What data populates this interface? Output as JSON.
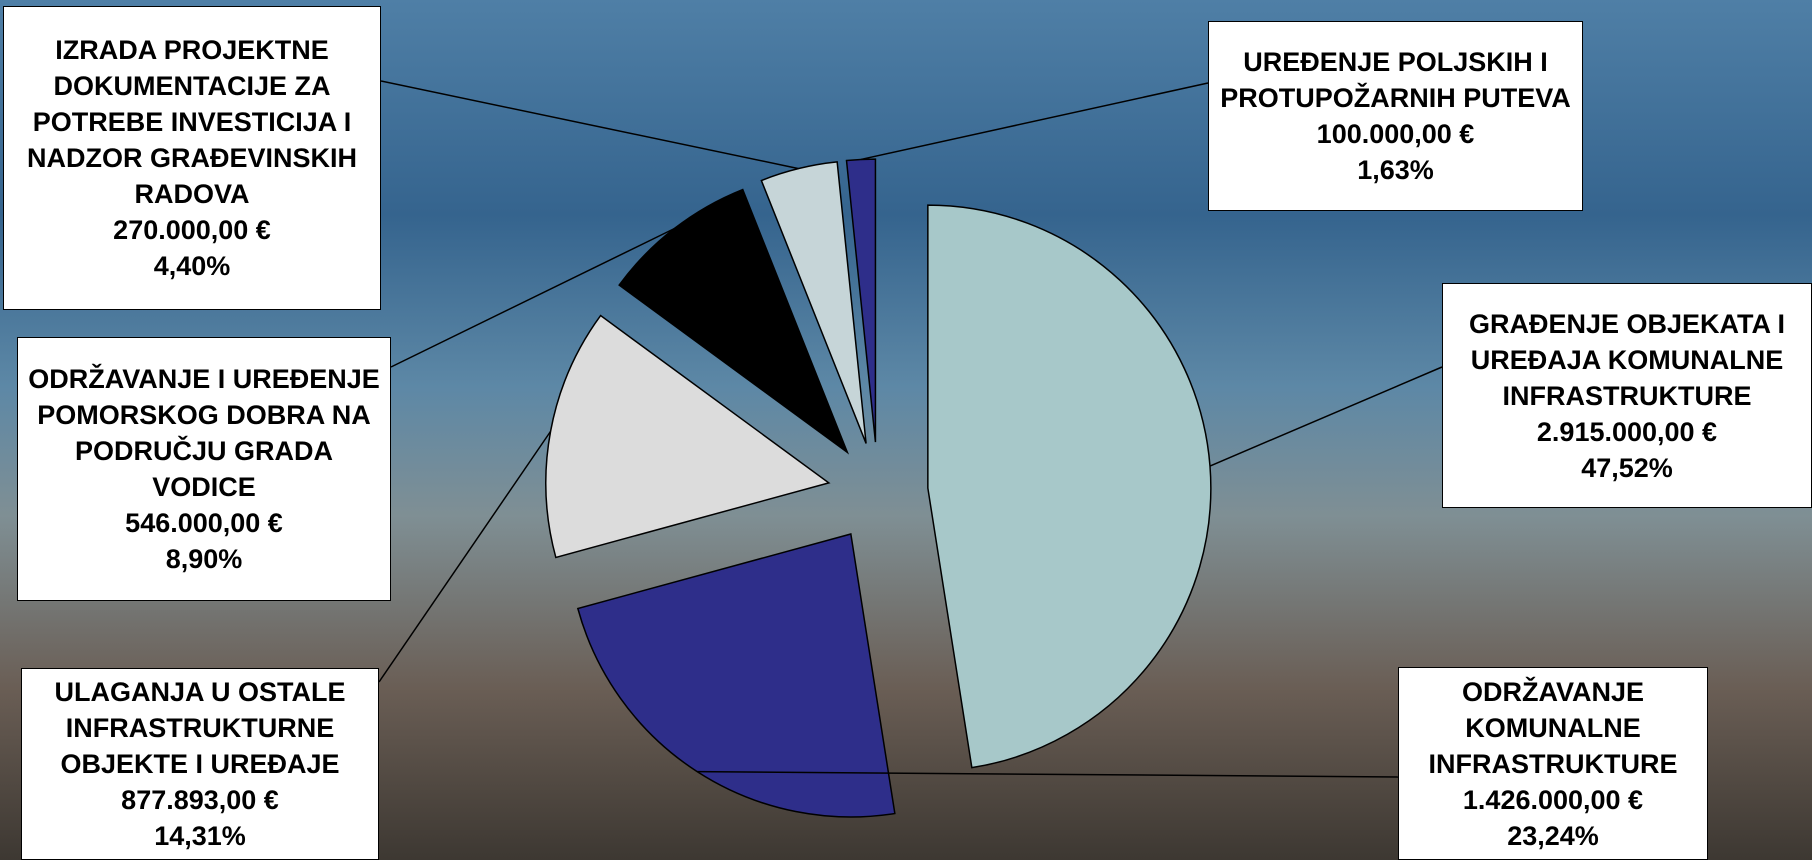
{
  "chart_data": {
    "type": "pie",
    "categories": [
      "GRAĐENJE OBJEKATA I UREĐAJA KOMUNALNE INFRASTRUKTURE",
      "ODRŽAVANJE KOMUNALNE INFRASTRUKTURE",
      "ULAGANJA U OSTALE INFRASTRUKTURNE OBJEKTE I UREĐAJE",
      "ODRŽAVANJE I UREĐENJE POMORSKOG DOBRA NA PODRUČJU GRADA VODICE",
      "IZRADA PROJEKTNE DOKUMENTACIJE ZA POTREBE INVESTICIJA I NADZOR GRAĐEVINSKIH RADOVA",
      "UREĐENJE POLJSKIH I PROTUPOŽARNIH PUTEVA"
    ],
    "values": [
      2915000,
      1426000,
      877893,
      546000,
      270000,
      100000
    ],
    "value_labels": [
      "2.915.000,00 €",
      "1.426.000,00 €",
      "877.893,00 €",
      "546.000,00 €",
      "270.000,00 €",
      "100.000,00 €"
    ],
    "percents": [
      47.52,
      23.24,
      14.31,
      8.9,
      4.4,
      1.63
    ],
    "percent_labels": [
      "47,52%",
      "23,24%",
      "14,31%",
      "8,90%",
      "4,40%",
      "1,63%"
    ],
    "colors": [
      "#a7c8c9",
      "#2e2e8a",
      "#dcdcdc",
      "#000000",
      "#c6d5d8",
      "#2e2e8a"
    ]
  }
}
